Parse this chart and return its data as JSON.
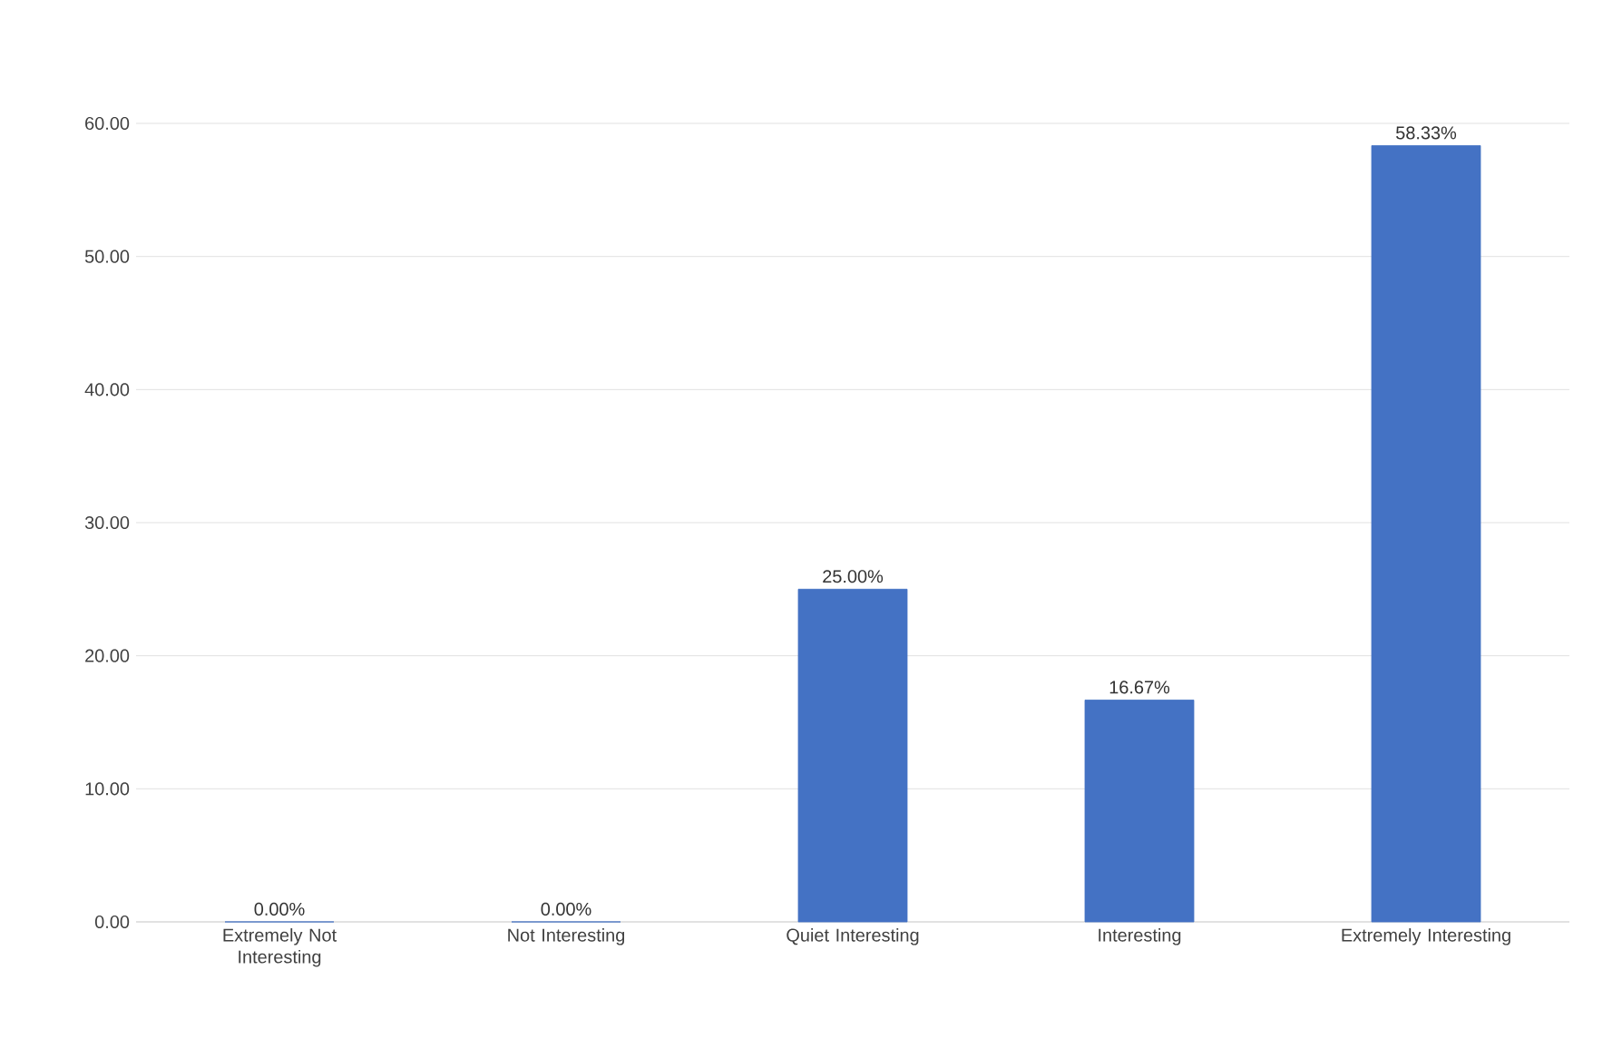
{
  "chart_data": {
    "type": "bar",
    "categories": [
      "Extremely Not Interesting",
      "Not Interesting",
      "Quiet Interesting",
      "Interesting",
      "Extremely Interesting"
    ],
    "values": [
      0,
      0,
      25,
      16.67,
      58.33
    ],
    "value_labels": [
      "0.00%",
      "0.00%",
      "25.00%",
      "16.67%",
      "58.33%"
    ],
    "color": "#4472c4",
    "ylim": [
      0,
      60
    ],
    "yticks": [
      {
        "value": 0,
        "label": "0.00"
      },
      {
        "value": 10,
        "label": "10.00"
      },
      {
        "value": 20,
        "label": "20.00"
      },
      {
        "value": 30,
        "label": "30.00"
      },
      {
        "value": 40,
        "label": "40.00"
      },
      {
        "value": 50,
        "label": "50.00"
      },
      {
        "value": 60,
        "label": "60.00"
      }
    ],
    "grid": "y"
  }
}
